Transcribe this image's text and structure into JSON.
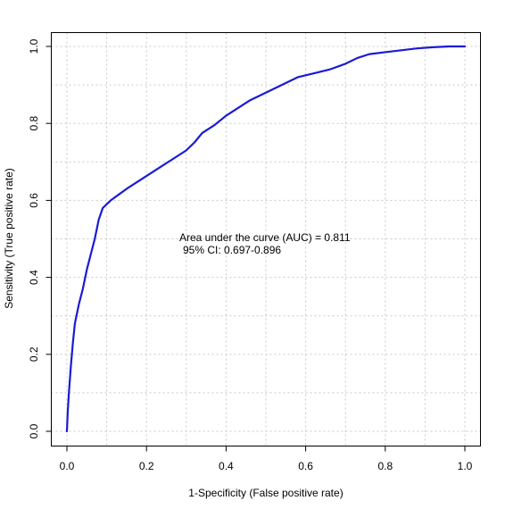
{
  "chart_data": {
    "type": "line",
    "xlabel": "1-Specificity (False positive rate)",
    "ylabel": "Sensitivity (True positive rate)",
    "xlim": [
      0,
      1
    ],
    "ylim": [
      0,
      1
    ],
    "x_ticks": [
      "0.0",
      "0.2",
      "0.4",
      "0.6",
      "0.8",
      "1.0"
    ],
    "y_ticks": [
      "0.0",
      "0.2",
      "0.4",
      "0.6",
      "0.8",
      "1.0"
    ],
    "grid": true,
    "grid_style": "dotted",
    "line_color": "#1a1ad6",
    "annotations": [
      {
        "text": "Area under the curve (AUC) = 0.811",
        "x": 0.28,
        "y": 0.5
      },
      {
        "text": "95% CI: 0.697-0.896",
        "x": 0.29,
        "y": 0.47
      }
    ],
    "series": [
      {
        "x": [
          0.0,
          0.002,
          0.005,
          0.01,
          0.015,
          0.02,
          0.03,
          0.04,
          0.05,
          0.06,
          0.07,
          0.08,
          0.09,
          0.1,
          0.11,
          0.13,
          0.15,
          0.18,
          0.21,
          0.24,
          0.27,
          0.3,
          0.32,
          0.34,
          0.37,
          0.4,
          0.43,
          0.46,
          0.5,
          0.54,
          0.58,
          0.62,
          0.66,
          0.7,
          0.73,
          0.76,
          0.8,
          0.84,
          0.88,
          0.92,
          0.96,
          1.0
        ],
        "y": [
          0.0,
          0.05,
          0.1,
          0.17,
          0.23,
          0.28,
          0.33,
          0.37,
          0.42,
          0.46,
          0.5,
          0.55,
          0.58,
          0.59,
          0.6,
          0.615,
          0.63,
          0.65,
          0.67,
          0.69,
          0.71,
          0.73,
          0.75,
          0.775,
          0.795,
          0.82,
          0.84,
          0.86,
          0.88,
          0.9,
          0.92,
          0.93,
          0.94,
          0.955,
          0.97,
          0.98,
          0.985,
          0.99,
          0.995,
          0.998,
          1.0,
          1.0
        ]
      }
    ]
  }
}
